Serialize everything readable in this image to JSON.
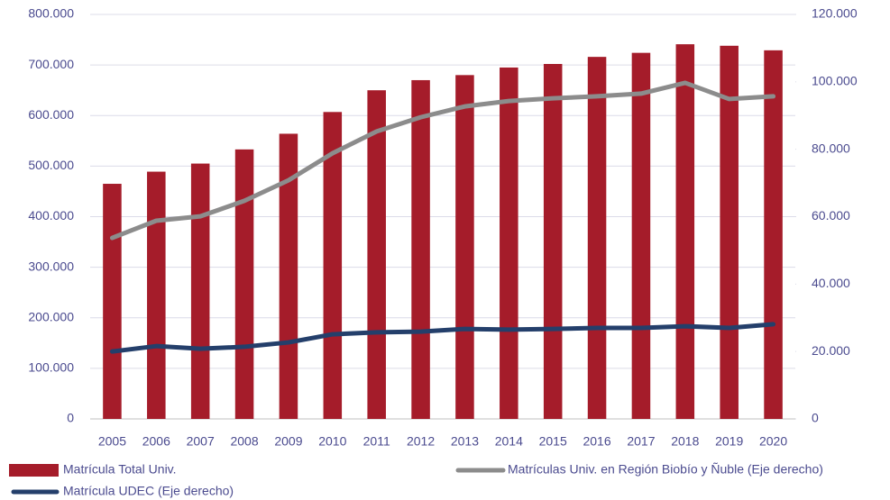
{
  "chart_data": {
    "type": "bar",
    "categories": [
      "2005",
      "2006",
      "2007",
      "2008",
      "2009",
      "2010",
      "2011",
      "2012",
      "2013",
      "2014",
      "2015",
      "2016",
      "2017",
      "2018",
      "2019",
      "2020"
    ],
    "series": [
      {
        "name": "Matrícula Total Univ.",
        "type": "bar",
        "color": "#a51c2a",
        "axis": "y",
        "values": [
          465000,
          489000,
          505000,
          533000,
          564000,
          607000,
          650000,
          670000,
          680000,
          695000,
          702000,
          716000,
          724000,
          741000,
          738000,
          729000
        ]
      },
      {
        "name": "Matrículas Univ. en Región Biobío y Ñuble (Eje derecho)",
        "type": "line",
        "color": "#8c8c8c",
        "axis": "y2",
        "values": [
          53700,
          58800,
          60100,
          64700,
          70800,
          78800,
          85300,
          89500,
          92700,
          94300,
          95100,
          95700,
          96500,
          99700,
          94900,
          95700
        ]
      },
      {
        "name": "Matrícula UDEC (Eje derecho)",
        "type": "line",
        "color": "#243f6b",
        "axis": "y2",
        "values": [
          20000,
          21600,
          20800,
          21400,
          22700,
          25100,
          25700,
          25900,
          26700,
          26500,
          26700,
          27000,
          27000,
          27500,
          27000,
          28100
        ]
      }
    ],
    "ylim": [
      0,
      800000
    ],
    "yticks": [
      0,
      {
        "value": 100000,
        "label": "100.000"
      },
      {
        "value": 200000,
        "label": "200.000"
      },
      {
        "value": 300000,
        "label": "300.000"
      },
      {
        "value": 400000,
        "label": "400.000"
      },
      {
        "value": 500000,
        "label": "500.000"
      },
      {
        "value": 600000,
        "label": "600.000"
      },
      {
        "value": 700000,
        "label": "700.000"
      },
      {
        "value": 800000,
        "label": "800.000"
      }
    ],
    "y2lim": [
      0,
      120000
    ],
    "y2ticks": [
      0,
      {
        "value": 20000,
        "label": "20.000"
      },
      {
        "value": 40000,
        "label": "40.000"
      },
      {
        "value": 60000,
        "label": "60.000"
      },
      {
        "value": 80000,
        "label": "80.000"
      },
      {
        "value": 100000,
        "label": "100.000"
      },
      {
        "value": 120000,
        "label": "120.000"
      }
    ],
    "grid": true,
    "legend": "bottom"
  }
}
